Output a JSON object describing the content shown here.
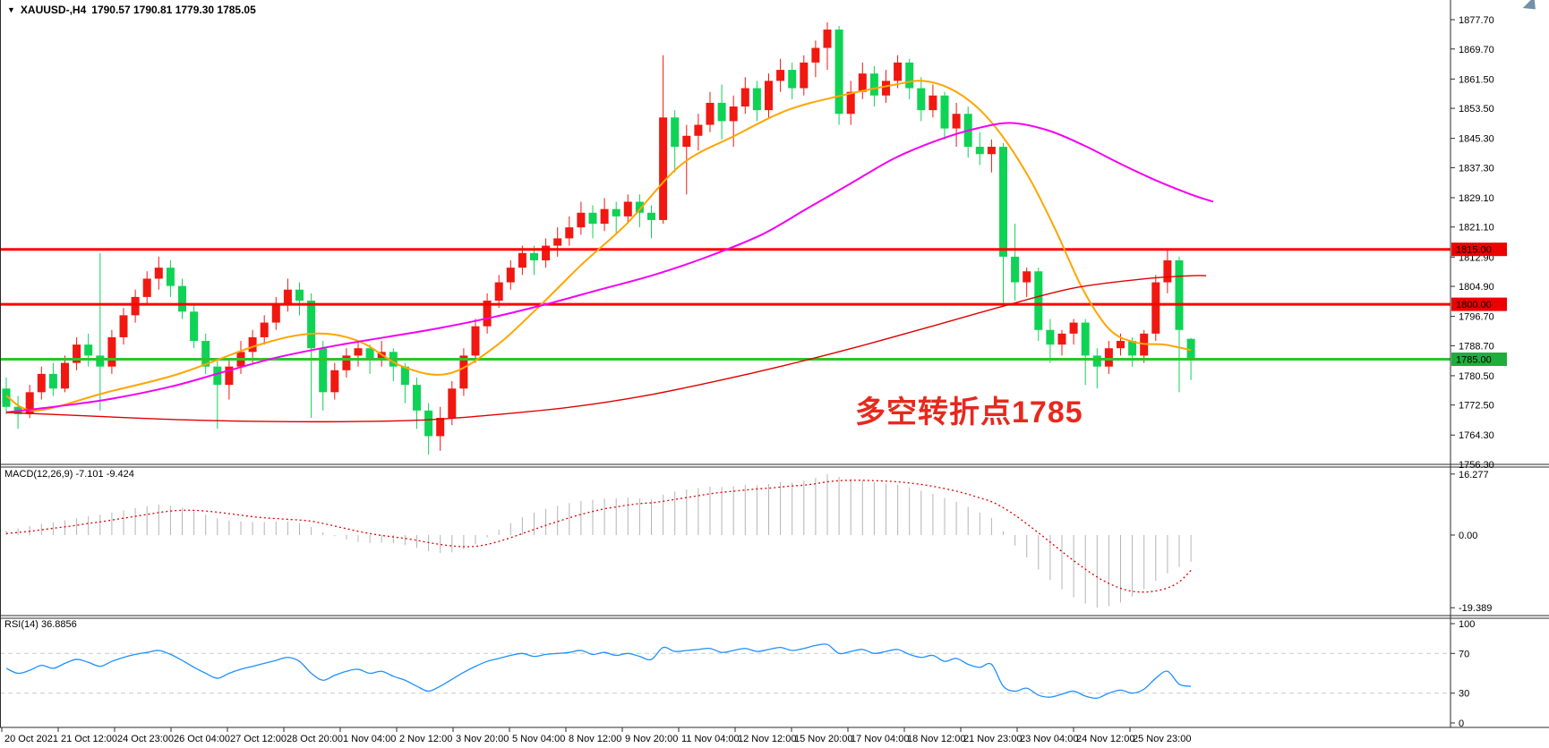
{
  "window": {
    "symbol_tf": "XAUUSD-,H4",
    "ohlc": "1790.57 1790.81 1779.30 1785.05",
    "dropdown_glyph": "▼"
  },
  "annotation": {
    "text": "多空转折点1785",
    "color": "#e8281e"
  },
  "colors": {
    "bull_candle": "#f01810",
    "bear_candle": "#0fd355",
    "resistance_line": "#ff0000",
    "pivot_line": "#2cc42c",
    "badge_red": "#ec0000",
    "badge_green": "#1fae3d",
    "ma_fast": "#ffa500",
    "ma_mid": "#f400f4",
    "ma_slow": "#e00000",
    "macd_histogram": "#b4b4b4",
    "macd_signal": "#e00000",
    "rsi_line": "#1e90ff",
    "rsi_levels": "#c9c9c9",
    "border": "#2b2b2b"
  },
  "price_panel": {
    "tick_labels": [
      "1877.70",
      "1869.70",
      "1861.50",
      "1853.50",
      "1845.30",
      "1837.30",
      "1829.10",
      "1821.10",
      "1812.90",
      "1804.90",
      "1796.70",
      "1788.70",
      "1780.50",
      "1772.50",
      "1764.30",
      "1756.30"
    ]
  },
  "macd_panel": {
    "label": "MACD(12,26,9) -7.101 -9.424",
    "tick_labels": [
      "16.277",
      "0.00",
      "-19.389"
    ]
  },
  "rsi_panel": {
    "label": "RSI(14) 36.8856",
    "tick_labels": [
      "100",
      "70",
      "30",
      "0"
    ]
  },
  "time_axis": {
    "labels": [
      "20 Oct 2021",
      "21 Oct 12:00",
      "24 Oct 23:00",
      "26 Oct 04:00",
      "27 Oct 12:00",
      "28 Oct 20:00",
      "1 Nov 04:00",
      "2 Nov 12:00",
      "3 Nov 20:00",
      "5 Nov 04:00",
      "8 Nov 12:00",
      "9 Nov 20:00",
      "11 Nov 04:00",
      "12 Nov 12:00",
      "15 Nov 20:00",
      "17 Nov 04:00",
      "18 Nov 12:00",
      "21 Nov 23:00",
      "23 Nov 04:00",
      "24 Nov 12:00",
      "25 Nov 23:00"
    ]
  },
  "chart_data": {
    "type": "candlestick",
    "symbol": "XAUUSD",
    "timeframe": "H4",
    "title": "XAUUSD-,H4 1790.57 1790.81 1779.30 1785.05",
    "current": {
      "open": 1790.57,
      "high": 1790.81,
      "low": 1779.3,
      "close": 1785.05
    },
    "price_axis": {
      "min": 1756.3,
      "max": 1877.7
    },
    "macd_axis": {
      "min": -19.389,
      "max": 16.277
    },
    "rsi_axis": {
      "min": 0,
      "max": 100,
      "levels": [
        70,
        30
      ]
    },
    "hlines": [
      {
        "price": 1815.0,
        "label": "1815.00",
        "line_color": "#ff0000",
        "badge_color": "#ec0000"
      },
      {
        "price": 1800.0,
        "label": "1800.00",
        "line_color": "#ff0000",
        "badge_color": "#ec0000"
      },
      {
        "price": 1785.0,
        "label": "1785.00",
        "line_color": "#2cc42c",
        "badge_color": "#1fae3d"
      }
    ],
    "candles": [
      [
        1777,
        1780,
        1770,
        1772
      ],
      [
        1772,
        1775,
        1766,
        1770
      ],
      [
        1770,
        1778,
        1769,
        1776
      ],
      [
        1776,
        1783,
        1774,
        1781
      ],
      [
        1781,
        1784,
        1775,
        1777
      ],
      [
        1777,
        1786,
        1776,
        1784
      ],
      [
        1784,
        1791,
        1782,
        1789
      ],
      [
        1789,
        1792,
        1783,
        1786
      ],
      [
        1786,
        1814,
        1771,
        1783
      ],
      [
        1783,
        1793,
        1781,
        1791
      ],
      [
        1791,
        1799,
        1789,
        1797
      ],
      [
        1797,
        1804,
        1795,
        1802
      ],
      [
        1802,
        1809,
        1800,
        1807
      ],
      [
        1807,
        1813,
        1804,
        1810
      ],
      [
        1810,
        1812,
        1802,
        1805
      ],
      [
        1805,
        1807,
        1796,
        1798
      ],
      [
        1798,
        1800,
        1788,
        1790
      ],
      [
        1790,
        1792,
        1781,
        1783
      ],
      [
        1783,
        1785,
        1766,
        1778
      ],
      [
        1778,
        1785,
        1774,
        1783
      ],
      [
        1783,
        1790,
        1781,
        1787
      ],
      [
        1787,
        1793,
        1784,
        1791
      ],
      [
        1791,
        1797,
        1789,
        1795
      ],
      [
        1795,
        1802,
        1793,
        1800
      ],
      [
        1800,
        1807,
        1798,
        1804
      ],
      [
        1804,
        1806,
        1797,
        1801
      ],
      [
        1801,
        1803,
        1769,
        1788
      ],
      [
        1788,
        1790,
        1771,
        1776
      ],
      [
        1776,
        1784,
        1774,
        1782
      ],
      [
        1782,
        1788,
        1780,
        1786
      ],
      [
        1786,
        1790,
        1783,
        1788
      ],
      [
        1788,
        1789,
        1781,
        1785
      ],
      [
        1785,
        1790,
        1783,
        1787
      ],
      [
        1787,
        1788,
        1779,
        1783
      ],
      [
        1783,
        1784,
        1773,
        1778
      ],
      [
        1778,
        1780,
        1766,
        1771
      ],
      [
        1771,
        1773,
        1759,
        1764
      ],
      [
        1764,
        1772,
        1760,
        1769
      ],
      [
        1769,
        1779,
        1767,
        1777
      ],
      [
        1777,
        1788,
        1775,
        1786
      ],
      [
        1786,
        1796,
        1784,
        1794
      ],
      [
        1794,
        1803,
        1792,
        1801
      ],
      [
        1801,
        1808,
        1799,
        1806
      ],
      [
        1806,
        1812,
        1804,
        1810
      ],
      [
        1810,
        1816,
        1808,
        1814
      ],
      [
        1814,
        1816,
        1808,
        1812
      ],
      [
        1812,
        1818,
        1810,
        1816
      ],
      [
        1816,
        1821,
        1813,
        1818
      ],
      [
        1818,
        1824,
        1816,
        1821
      ],
      [
        1821,
        1828,
        1819,
        1825
      ],
      [
        1825,
        1827,
        1818,
        1822
      ],
      [
        1822,
        1829,
        1820,
        1826
      ],
      [
        1826,
        1828,
        1819,
        1824
      ],
      [
        1824,
        1830,
        1822,
        1828
      ],
      [
        1828,
        1830,
        1821,
        1825
      ],
      [
        1825,
        1827,
        1818,
        1823
      ],
      [
        1823,
        1868,
        1822,
        1851
      ],
      [
        1851,
        1853,
        1836,
        1843
      ],
      [
        1843,
        1849,
        1830,
        1846
      ],
      [
        1846,
        1852,
        1842,
        1849
      ],
      [
        1849,
        1858,
        1847,
        1855
      ],
      [
        1855,
        1860,
        1845,
        1850
      ],
      [
        1850,
        1857,
        1843,
        1854
      ],
      [
        1854,
        1862,
        1852,
        1859
      ],
      [
        1859,
        1861,
        1850,
        1853
      ],
      [
        1853,
        1863,
        1851,
        1861
      ],
      [
        1861,
        1867,
        1858,
        1864
      ],
      [
        1864,
        1866,
        1856,
        1859
      ],
      [
        1859,
        1868,
        1857,
        1866
      ],
      [
        1866,
        1872,
        1862,
        1870
      ],
      [
        1870,
        1877,
        1864,
        1875
      ],
      [
        1875,
        1876,
        1849,
        1852
      ],
      [
        1852,
        1861,
        1849,
        1858
      ],
      [
        1858,
        1866,
        1856,
        1863
      ],
      [
        1863,
        1865,
        1854,
        1857
      ],
      [
        1857,
        1864,
        1855,
        1861
      ],
      [
        1861,
        1868,
        1859,
        1866
      ],
      [
        1866,
        1867,
        1856,
        1859
      ],
      [
        1859,
        1862,
        1850,
        1853
      ],
      [
        1853,
        1860,
        1851,
        1857
      ],
      [
        1857,
        1858,
        1845,
        1848
      ],
      [
        1848,
        1855,
        1843,
        1852
      ],
      [
        1852,
        1854,
        1840,
        1843
      ],
      [
        1843,
        1847,
        1838,
        1841
      ],
      [
        1841,
        1845,
        1836,
        1843
      ],
      [
        1843,
        1844,
        1800,
        1813
      ],
      [
        1813,
        1822,
        1801,
        1806
      ],
      [
        1806,
        1810,
        1802,
        1809
      ],
      [
        1809,
        1810,
        1790,
        1793
      ],
      [
        1793,
        1796,
        1784,
        1789
      ],
      [
        1789,
        1793,
        1786,
        1792
      ],
      [
        1792,
        1796,
        1789,
        1795
      ],
      [
        1795,
        1796,
        1778,
        1786
      ],
      [
        1786,
        1788,
        1777,
        1783
      ],
      [
        1783,
        1790,
        1781,
        1788
      ],
      [
        1788,
        1792,
        1786,
        1790
      ],
      [
        1790,
        1791,
        1783,
        1786
      ],
      [
        1786,
        1793,
        1784,
        1792
      ],
      [
        1792,
        1808,
        1790,
        1806
      ],
      [
        1806,
        1815,
        1803,
        1812
      ],
      [
        1812,
        1813,
        1776,
        1793
      ],
      [
        1790.57,
        1790.81,
        1779.3,
        1785.05
      ]
    ],
    "moving_averages": [
      {
        "name": "ma-fast-orange",
        "color": "#ffa500",
        "width": 2,
        "points": [
          [
            0,
            1775
          ],
          [
            2.5,
            1771
          ],
          [
            8.6,
            1776
          ],
          [
            14.7,
            1781
          ],
          [
            21.6,
            1789
          ],
          [
            26.2,
            1792
          ],
          [
            30,
            1790
          ],
          [
            33.8,
            1783
          ],
          [
            37.6,
            1781
          ],
          [
            41.5,
            1788
          ],
          [
            45.3,
            1799
          ],
          [
            49.1,
            1811
          ],
          [
            52.9,
            1822
          ],
          [
            57.5,
            1838
          ],
          [
            62.1,
            1846
          ],
          [
            66.6,
            1853
          ],
          [
            71.2,
            1857
          ],
          [
            75.8,
            1860
          ],
          [
            78.1,
            1861
          ],
          [
            80.4,
            1859
          ],
          [
            82.7,
            1854
          ],
          [
            84.9,
            1846
          ],
          [
            87.3,
            1834
          ],
          [
            89.5,
            1820
          ],
          [
            91.8,
            1804
          ],
          [
            94.1,
            1793
          ],
          [
            96.4,
            1789.5
          ],
          [
            98.7,
            1789
          ],
          [
            101,
            1787.5
          ]
        ]
      },
      {
        "name": "ma-mid-magenta",
        "color": "#f400f4",
        "width": 2,
        "points": [
          [
            0,
            1770.5
          ],
          [
            4,
            1772
          ],
          [
            8.6,
            1774
          ],
          [
            14,
            1777.5
          ],
          [
            18.5,
            1781.5
          ],
          [
            23.1,
            1785.5
          ],
          [
            27.7,
            1788.5
          ],
          [
            32.3,
            1791
          ],
          [
            36.9,
            1793.5
          ],
          [
            41.5,
            1796.5
          ],
          [
            46,
            1800
          ],
          [
            50.6,
            1804
          ],
          [
            55.2,
            1808
          ],
          [
            59.8,
            1813
          ],
          [
            64.4,
            1819
          ],
          [
            68.2,
            1826
          ],
          [
            72,
            1833
          ],
          [
            75.8,
            1840
          ],
          [
            79.6,
            1845
          ],
          [
            82.7,
            1848
          ],
          [
            85.7,
            1849.5
          ],
          [
            88.8,
            1847.5
          ],
          [
            91.8,
            1843.5
          ],
          [
            94.9,
            1838.5
          ],
          [
            97.9,
            1834
          ],
          [
            101,
            1830
          ],
          [
            102.9,
            1828
          ]
        ]
      },
      {
        "name": "ma-slow-red",
        "color": "#e00000",
        "width": 1.4,
        "points": [
          [
            0,
            1770.5
          ],
          [
            7.1,
            1769.5
          ],
          [
            14.7,
            1768.5
          ],
          [
            22.4,
            1768
          ],
          [
            30,
            1768
          ],
          [
            36.1,
            1768.5
          ],
          [
            42.2,
            1770
          ],
          [
            48.3,
            1772
          ],
          [
            54.4,
            1775
          ],
          [
            60.5,
            1779
          ],
          [
            66.6,
            1783.5
          ],
          [
            72.7,
            1788.5
          ],
          [
            78.9,
            1794
          ],
          [
            85,
            1799.5
          ],
          [
            91.1,
            1804.5
          ],
          [
            97.2,
            1807
          ],
          [
            101,
            1807.8
          ],
          [
            102.3,
            1807.8
          ]
        ]
      }
    ],
    "macd": {
      "params": "12,26,9",
      "main_current": -7.101,
      "signal_current": -9.424,
      "histogram": [
        1.2,
        1.8,
        2.4,
        3.0,
        3.4,
        3.9,
        4.5,
        5.0,
        5.4,
        6.0,
        6.6,
        7.2,
        7.7,
        8.1,
        7.8,
        7.2,
        6.3,
        5.4,
        4.5,
        3.9,
        3.6,
        3.5,
        3.5,
        3.6,
        3.6,
        3.2,
        2.2,
        0.8,
        -0.3,
        -1.2,
        -1.8,
        -2.1,
        -2.0,
        -2.2,
        -2.7,
        -3.4,
        -4.3,
        -4.8,
        -4.6,
        -3.8,
        -2.4,
        -0.6,
        1.4,
        3.2,
        4.8,
        6.0,
        7.0,
        7.8,
        8.5,
        9.1,
        9.4,
        9.7,
        9.8,
        10.0,
        9.8,
        9.5,
        10.8,
        11.6,
        12.1,
        12.5,
        12.9,
        12.8,
        13.0,
        13.4,
        13.3,
        13.6,
        14.1,
        14.0,
        14.5,
        15.3,
        16.277,
        15.5,
        14.9,
        14.6,
        14.1,
        13.7,
        13.4,
        12.7,
        11.8,
        11.0,
        9.9,
        8.9,
        7.5,
        6.0,
        4.6,
        1.0,
        -2.8,
        -6.0,
        -9.2,
        -12.0,
        -14.5,
        -16.6,
        -18.3,
        -19.389,
        -19.0,
        -18.0,
        -16.4,
        -14.4,
        -12.2,
        -10.2,
        -8.5,
        -7.101
      ],
      "signal": [
        0.4,
        0.7,
        1.0,
        1.4,
        1.8,
        2.2,
        2.6,
        3.1,
        3.5,
        4.0,
        4.5,
        5.0,
        5.5,
        6.0,
        6.4,
        6.6,
        6.6,
        6.4,
        6.1,
        5.7,
        5.3,
        4.9,
        4.6,
        4.4,
        4.2,
        4.0,
        3.7,
        3.1,
        2.4,
        1.7,
        1.0,
        0.4,
        -0.1,
        -0.5,
        -0.9,
        -1.4,
        -2.0,
        -2.5,
        -2.9,
        -3.1,
        -3.0,
        -2.5,
        -1.7,
        -0.7,
        0.4,
        1.5,
        2.6,
        3.6,
        4.6,
        5.5,
        6.3,
        7.0,
        7.5,
        8.0,
        8.4,
        8.6,
        9.0,
        9.5,
        10.0,
        10.5,
        11.0,
        11.4,
        11.7,
        12.0,
        12.3,
        12.5,
        12.8,
        13.1,
        13.3,
        13.7,
        14.2,
        14.5,
        14.6,
        14.6,
        14.5,
        14.4,
        14.2,
        13.9,
        13.5,
        13.0,
        12.4,
        11.7,
        10.9,
        9.9,
        8.9,
        7.3,
        5.3,
        3.0,
        0.6,
        -1.9,
        -4.4,
        -6.8,
        -9.1,
        -11.2,
        -12.9,
        -14.2,
        -15.0,
        -15.2,
        -14.9,
        -14.1,
        -12.5,
        -9.424
      ]
    },
    "rsi": {
      "period": 14,
      "current": 36.8856,
      "values": [
        55,
        50,
        53,
        58,
        55,
        60,
        64,
        61,
        57,
        62,
        66,
        69,
        71,
        73,
        69,
        63,
        56,
        50,
        45,
        50,
        54,
        57,
        60,
        63,
        66,
        62,
        50,
        43,
        48,
        52,
        54,
        50,
        52,
        47,
        43,
        37,
        32,
        37,
        44,
        51,
        57,
        62,
        65,
        68,
        70,
        67,
        69,
        70,
        71,
        73,
        69,
        71,
        68,
        70,
        67,
        64,
        76,
        72,
        73,
        74,
        75,
        71,
        73,
        75,
        72,
        74,
        76,
        73,
        75,
        78,
        79,
        70,
        72,
        74,
        70,
        72,
        74,
        69,
        66,
        68,
        62,
        65,
        59,
        56,
        59,
        37,
        32,
        35,
        28,
        26,
        29,
        32,
        27,
        25,
        30,
        33,
        30,
        34,
        45,
        52,
        39,
        36.8856
      ]
    }
  }
}
